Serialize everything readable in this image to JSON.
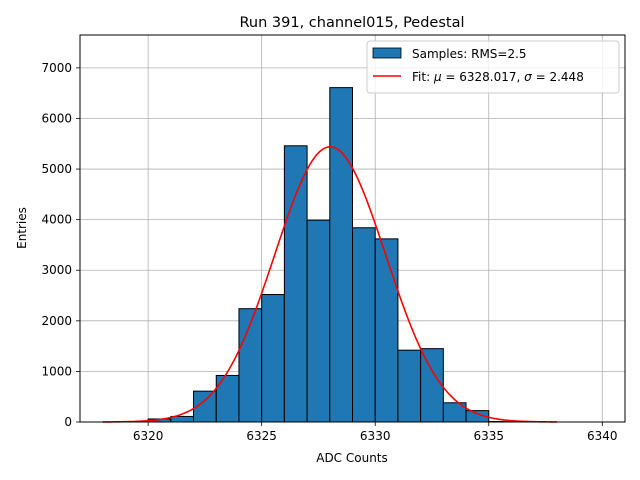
{
  "chart_data": {
    "type": "bar",
    "title": "Run 391, channel015, Pedestal",
    "xlabel": "ADC Counts",
    "ylabel": "Entries",
    "xlim": [
      6317.0,
      6341.0
    ],
    "ylim": [
      0,
      7650
    ],
    "xticks": [
      6320,
      6325,
      6330,
      6335,
      6340
    ],
    "yticks": [
      0,
      1000,
      2000,
      3000,
      4000,
      5000,
      6000,
      7000
    ],
    "grid": true,
    "legend_position": "top-right",
    "histogram": {
      "name": "Samples: RMS=2.5",
      "color": "#1f77b4",
      "edge_color": "#000000",
      "bin_edges": [
        6318,
        6319,
        6320,
        6321,
        6322,
        6323,
        6324,
        6325,
        6326,
        6327,
        6328,
        6329,
        6330,
        6331,
        6332,
        6333,
        6334,
        6335,
        6336,
        6337,
        6338
      ],
      "counts": [
        0,
        2,
        60,
        110,
        610,
        920,
        2240,
        2520,
        5460,
        3990,
        6610,
        3840,
        3620,
        1420,
        1450,
        380,
        225,
        10,
        5,
        0
      ]
    },
    "fit": {
      "name": "Fit: μ = 6328.017, σ = 2.448",
      "mu_label": "μ",
      "mu_value": "6328.017",
      "sigma_label": "σ",
      "sigma_value": "2.448",
      "mu": 6328.017,
      "sigma": 2.448,
      "amplitude": 5440,
      "x_range": [
        6318,
        6338
      ],
      "color": "#ff0000"
    }
  }
}
